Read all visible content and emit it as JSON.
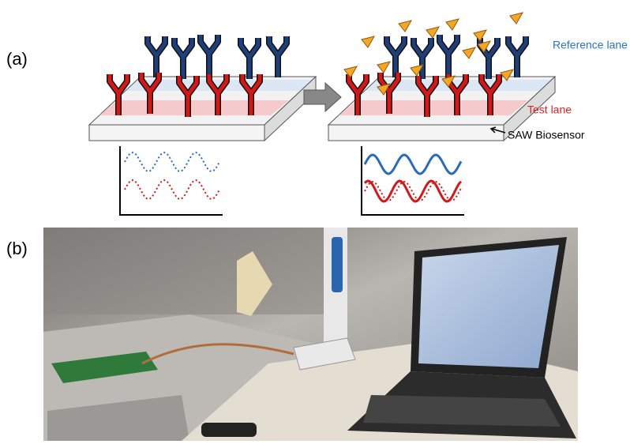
{
  "figure": {
    "panel_a": {
      "label": "(a)",
      "reference_lane": "Reference lane",
      "test_lane": "Test lane",
      "sensor": "SAW Biosensor"
    },
    "panel_b": {
      "label": "(b)"
    }
  }
}
